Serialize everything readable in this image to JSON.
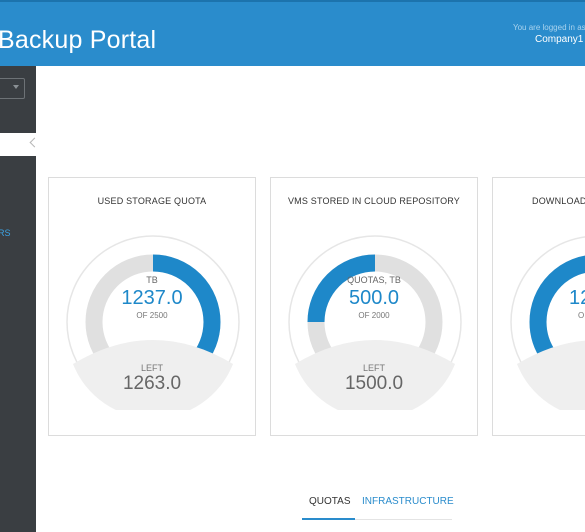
{
  "header": {
    "title": "Backup Portal",
    "login_note": "You are logged in as",
    "company": "Company1"
  },
  "sidebar": {
    "nav_item_fragment": "RS"
  },
  "cards": [
    {
      "title": "USED STORAGE QUOTA",
      "unit": "TB",
      "value": "1237.0",
      "of_text": "OF 2500",
      "left_label": "LEFT",
      "left_value": "1263.0",
      "fraction_used": 0.4948
    },
    {
      "title": "VMS STORED IN CLOUD REPOSITORY",
      "unit": "QUOTAS, TB",
      "value": "500.0",
      "of_text": "OF 2000",
      "left_label": "LEFT",
      "left_value": "1500.0",
      "fraction_used": 0.25
    },
    {
      "title": "DOWNLOAD",
      "unit": "",
      "value": "12",
      "of_text": "O",
      "left_label": "",
      "left_value": "",
      "fraction_used": 0.45
    }
  ],
  "tabs": [
    {
      "label": "QUOTAS",
      "active": true
    },
    {
      "label": "INFRASTRUCTURE",
      "active": false
    }
  ],
  "colors": {
    "accent": "#2a8ccc",
    "sidebar": "#3a3e42",
    "gauge_track": "#e0e0e0"
  }
}
